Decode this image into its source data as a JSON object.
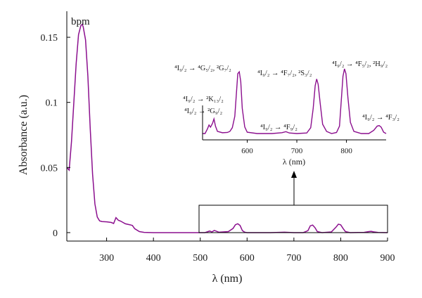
{
  "chart_data": [
    {
      "type": "line",
      "xlabel": "λ (nm)",
      "ylabel": "Absorbance (a.u.)",
      "xlim": [
        215,
        900
      ],
      "ylim": [
        -0.0065,
        0.17
      ],
      "xticks": [
        "300",
        "400",
        "500",
        "600",
        "700",
        "800",
        "900"
      ],
      "yticks": [
        "0",
        "0.05",
        "0.1",
        "0.15"
      ],
      "grid": false,
      "line_color": "#8b0f8e",
      "series": [
        {
          "name": "bpm",
          "x": [
            215,
            220,
            225,
            230,
            235,
            240,
            245,
            248,
            250,
            255,
            260,
            265,
            270,
            275,
            280,
            285,
            290,
            300,
            310,
            315,
            320,
            325,
            330,
            340,
            350,
            355,
            360,
            370,
            380,
            400,
            450,
            500,
            510,
            520,
            525,
            530,
            540,
            560,
            570,
            575,
            580,
            585,
            590,
            595,
            600,
            620,
            650,
            680,
            700,
            720,
            730,
            735,
            740,
            745,
            750,
            760,
            780,
            790,
            795,
            800,
            805,
            810,
            820,
            850,
            860,
            865,
            870,
            880,
            900
          ],
          "y": [
            0.05,
            0.048,
            0.07,
            0.1,
            0.13,
            0.152,
            0.159,
            0.16,
            0.158,
            0.148,
            0.12,
            0.08,
            0.045,
            0.022,
            0.012,
            0.009,
            0.0085,
            0.0083,
            0.0078,
            0.007,
            0.0115,
            0.0095,
            0.0088,
            0.0068,
            0.006,
            0.0055,
            0.003,
            0.0008,
            0.0002,
            0.0,
            0.0,
            0.0,
            0.0,
            0.0012,
            0.0005,
            0.0017,
            0.0003,
            0.0008,
            0.0032,
            0.006,
            0.0068,
            0.0055,
            0.0015,
            0.0003,
            0.0,
            0.0,
            0.0,
            0.0003,
            0.0,
            0.0,
            0.0015,
            0.0052,
            0.0058,
            0.0038,
            0.0008,
            0.0,
            0.0005,
            0.0042,
            0.0065,
            0.006,
            0.0032,
            0.0008,
            0.0,
            0.0002,
            0.0008,
            0.001,
            0.0006,
            0.0001,
            0.0
          ]
        }
      ]
    },
    {
      "type": "line",
      "xlabel": "λ (nm)",
      "xlim": [
        510,
        880
      ],
      "xticks": [
        "600",
        "700",
        "800"
      ],
      "line_color": "#8b0f8e",
      "annotations": [
        {
          "t": "⁴I₉/₂ → ⁴G₅/₂, ²G₇/₂"
        },
        {
          "t": "⁴I₉/₂ → ²K₁₃/₂"
        },
        {
          "t": "⁴I₉/₂ → ²G₉/₂"
        },
        {
          "t": "⁴I₉/₂ → ⁴F₇/₂, ²S₃/₂"
        },
        {
          "t": "⁴I₉/₂ → ⁴F₉/₂"
        },
        {
          "t": "⁴I₉/₂ → ⁴F₅/₂, ²H₉/₂"
        },
        {
          "t": "⁴I₉/₂ → ⁴F₃/₂"
        }
      ],
      "series": [
        {
          "x": [
            510,
            515,
            520,
            523,
            526,
            530,
            533,
            536,
            540,
            550,
            560,
            565,
            570,
            575,
            578,
            581,
            584,
            587,
            590,
            595,
            600,
            620,
            650,
            670,
            678,
            685,
            700,
            720,
            728,
            733,
            737,
            740,
            743,
            747,
            752,
            760,
            770,
            780,
            786,
            790,
            793,
            796,
            799,
            803,
            808,
            815,
            830,
            845,
            855,
            862,
            866,
            870,
            875,
            880
          ],
          "y": [
            0.0,
            0.0,
            0.0018,
            0.0032,
            0.0024,
            0.0038,
            0.0055,
            0.0028,
            0.0008,
            0.0003,
            0.0004,
            0.0008,
            0.0022,
            0.0065,
            0.0145,
            0.0225,
            0.0232,
            0.0195,
            0.0095,
            0.0025,
            0.0005,
            0.0,
            0.0,
            0.0003,
            0.0007,
            0.0002,
            0.0,
            0.0002,
            0.0022,
            0.0095,
            0.018,
            0.0205,
            0.0185,
            0.0115,
            0.0035,
            0.0008,
            0.0,
            0.0004,
            0.0028,
            0.0135,
            0.0215,
            0.0243,
            0.0225,
            0.0135,
            0.0042,
            0.0008,
            0.0,
            0.0,
            0.0012,
            0.0028,
            0.003,
            0.0024,
            0.0005,
            0.0
          ]
        }
      ]
    }
  ]
}
